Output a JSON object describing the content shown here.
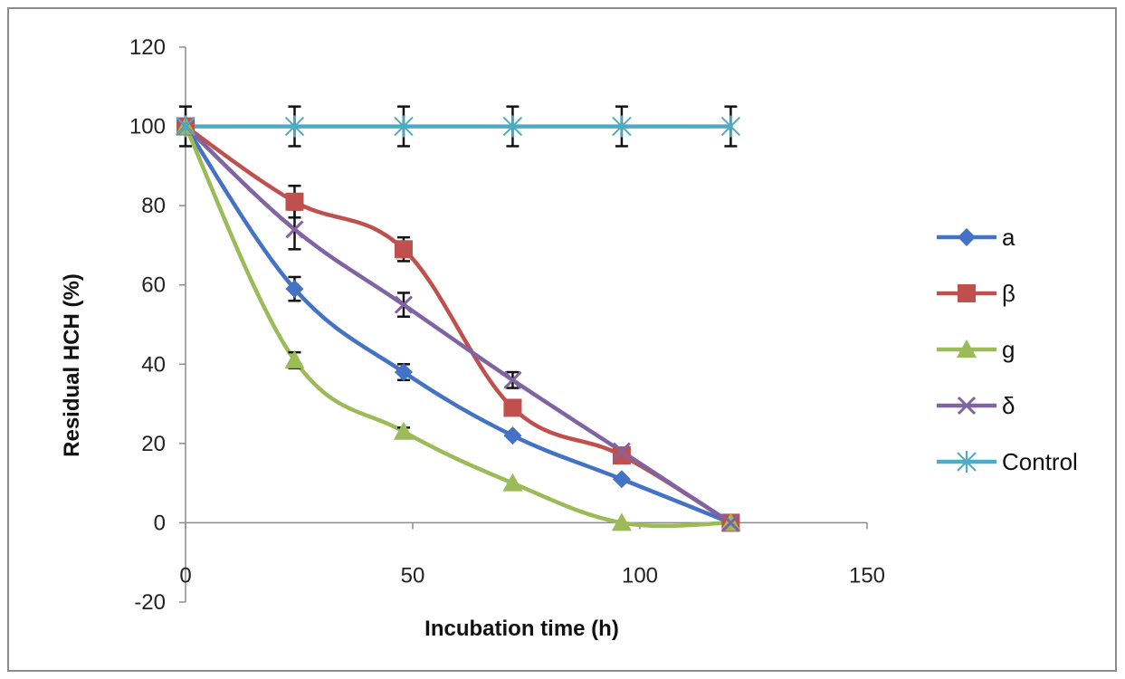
{
  "chart_data": {
    "type": "line",
    "title": "",
    "xlabel": "Incubation time (h)",
    "ylabel": "Residual HCH (%)",
    "xlim": [
      0,
      150
    ],
    "ylim": [
      -20,
      120
    ],
    "x_ticks": [
      0,
      50,
      100,
      150
    ],
    "y_ticks": [
      -20,
      0,
      20,
      40,
      60,
      80,
      100,
      120
    ],
    "grid": false,
    "legend_position": "right",
    "smooth_lines": true,
    "series": [
      {
        "name": "a",
        "color": "#4472c4",
        "marker": "diamond",
        "x": [
          0,
          24,
          48,
          72,
          96,
          120
        ],
        "y": [
          100,
          59,
          38,
          22,
          11,
          0
        ],
        "error": [
          0,
          3,
          2,
          0,
          0,
          0
        ]
      },
      {
        "name": "β",
        "color": "#c0504d",
        "marker": "square",
        "x": [
          0,
          24,
          48,
          72,
          96,
          120
        ],
        "y": [
          100,
          81,
          69,
          29,
          17,
          0
        ],
        "error": [
          0,
          4,
          3,
          0,
          0,
          0
        ]
      },
      {
        "name": "g",
        "color": "#9bbb59",
        "marker": "triangle",
        "x": [
          0,
          24,
          48,
          72,
          96,
          120
        ],
        "y": [
          100,
          41,
          23,
          10,
          0,
          0
        ],
        "error": [
          0,
          2,
          1,
          0,
          0,
          0
        ]
      },
      {
        "name": "δ",
        "color": "#8064a2",
        "marker": "x",
        "x": [
          0,
          24,
          48,
          72,
          96,
          120
        ],
        "y": [
          100,
          74,
          55,
          36,
          18,
          0
        ],
        "error": [
          0,
          5,
          3,
          2,
          0,
          0
        ]
      },
      {
        "name": "Control",
        "color": "#4bacc6",
        "marker": "star",
        "x": [
          0,
          24,
          48,
          72,
          96,
          120
        ],
        "y": [
          100,
          100,
          100,
          100,
          100,
          100
        ],
        "error": [
          5,
          5,
          5,
          5,
          5,
          5
        ]
      }
    ]
  }
}
